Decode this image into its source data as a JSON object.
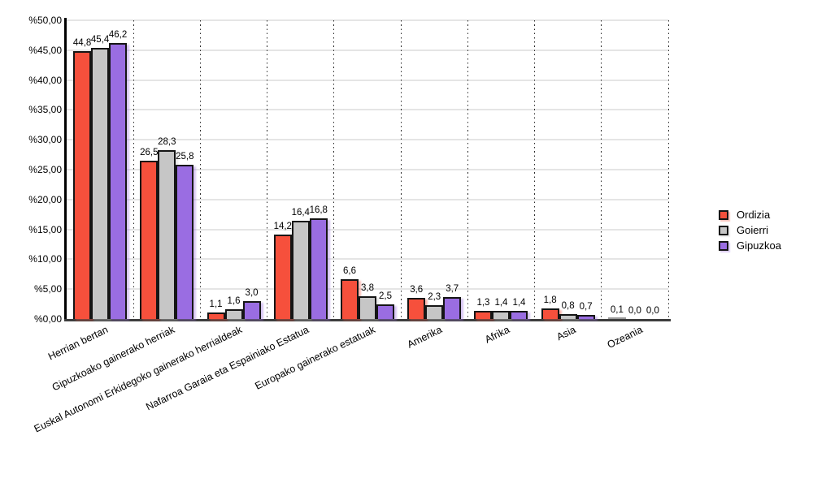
{
  "chart_data": {
    "type": "bar",
    "title": "",
    "xlabel": "",
    "ylabel": "",
    "ylim": [
      0,
      50
    ],
    "grid": "horizontal solid gridlines; vertical dotted category separators",
    "legend_position": "right",
    "categories": [
      "Herrian bertan",
      "Gipuzkoako gainerako herriak",
      "Euskal Autonomi Erkidegoko gainerako herrialdeak",
      "Nafarroa Garaia eta Espainiako Estatua",
      "Europako gainerako estatuak",
      "Amerika",
      "Afrika",
      "Asia",
      "Ozeania"
    ],
    "yticks": {
      "values": [
        0,
        5,
        10,
        15,
        20,
        25,
        30,
        35,
        40,
        45,
        50
      ],
      "labels": [
        "%0,00",
        "%5,00",
        "%10,00",
        "%15,00",
        "%20,00",
        "%25,00",
        "%30,00",
        "%35,00",
        "%40,00",
        "%45,00",
        "%50,00"
      ]
    },
    "series": [
      {
        "name": "Ordizia",
        "color": "#f6503c",
        "values": [
          44.8,
          26.5,
          1.1,
          14.2,
          6.6,
          3.6,
          1.3,
          1.8,
          0.1
        ],
        "labels": [
          "44,8",
          "26,5",
          "1,1",
          "14,2",
          "6,6",
          "3,6",
          "1,3",
          "1,8",
          "0,1"
        ]
      },
      {
        "name": "Goierri",
        "color": "#c6c6c6",
        "values": [
          45.4,
          28.3,
          1.6,
          16.4,
          3.8,
          2.3,
          1.4,
          0.8,
          0.0
        ],
        "labels": [
          "45,4",
          "28,3",
          "1,6",
          "16,4",
          "3,8",
          "2,3",
          "1,4",
          "0,8",
          "0,0"
        ]
      },
      {
        "name": "Gipuzkoa",
        "color": "#9a6de2",
        "values": [
          46.2,
          25.8,
          3.0,
          16.8,
          2.5,
          3.7,
          1.4,
          0.7,
          0.0
        ],
        "labels": [
          "46,2",
          "25,8",
          "3,0",
          "16,8",
          "2,5",
          "3,7",
          "1,4",
          "0,7",
          "0,0"
        ]
      }
    ],
    "colors": {
      "background": "#ffffff",
      "y_axis_line": "#000000",
      "x_axis_line": "#3d3d3d",
      "gridline": "#e5e5e5",
      "separator_dots": "#2b2b2b",
      "bar_border": "#151515",
      "text": "#000000"
    }
  }
}
